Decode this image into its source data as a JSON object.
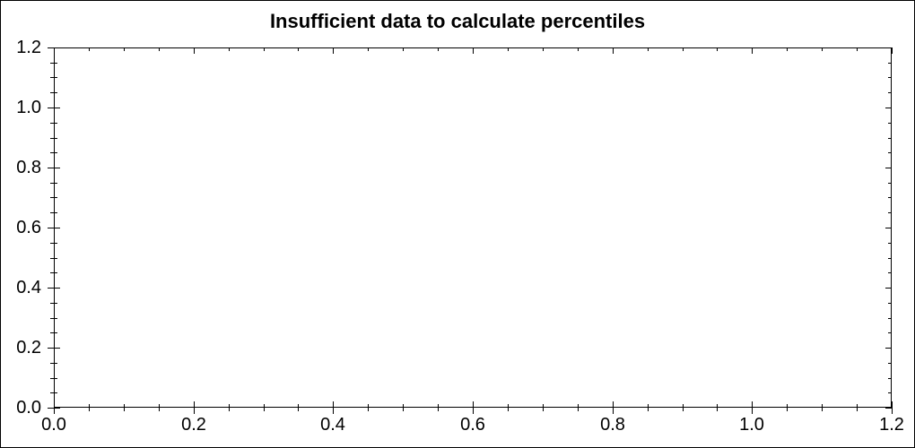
{
  "window": {
    "background": "#ffffff",
    "border_color": "#000000"
  },
  "chart_data": {
    "type": "scatter",
    "title": "Insufficient data to calculate percentiles",
    "xlabel": "",
    "ylabel": "",
    "xlim": [
      0,
      1.2
    ],
    "ylim": [
      0,
      1.2
    ],
    "x_major_step": 0.2,
    "x_minor_step": 0.05,
    "y_major_step": 0.2,
    "y_minor_step": 0.05,
    "x_tick_labels": [
      "0.0",
      "0.2",
      "0.4",
      "0.6",
      "0.8",
      "1.0",
      "1.2"
    ],
    "y_tick_labels": [
      "0.0",
      "0.2",
      "0.4",
      "0.6",
      "0.8",
      "1.0",
      "1.2"
    ],
    "series": [],
    "grid": false,
    "legend": "none",
    "axis_color": "#000000",
    "text_color": "#000000",
    "plot_background": "#ffffff"
  }
}
